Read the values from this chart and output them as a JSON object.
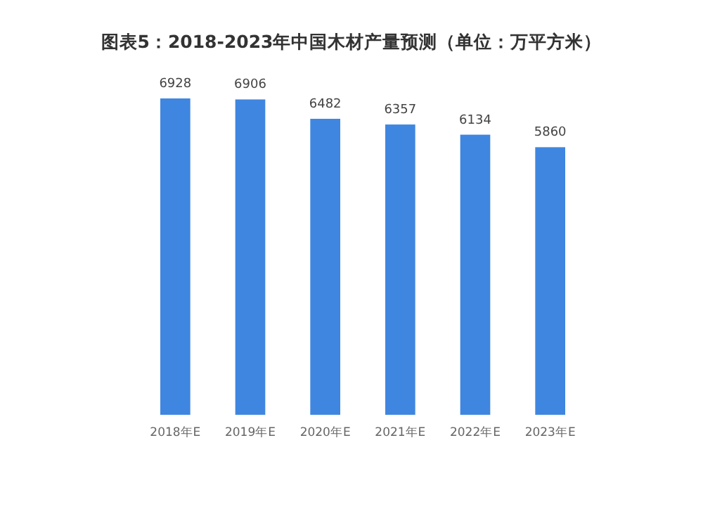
{
  "chart_data": {
    "type": "bar",
    "title": "图表5：2018-2023年中国木材产量预测（单位：万平方米）",
    "categories": [
      "2018年E",
      "2019年E",
      "2020年E",
      "2021年E",
      "2022年E",
      "2023年E"
    ],
    "values": [
      6928,
      6906,
      6482,
      6357,
      6134,
      5860
    ],
    "color": "#3f86e0",
    "data_labels": true
  }
}
